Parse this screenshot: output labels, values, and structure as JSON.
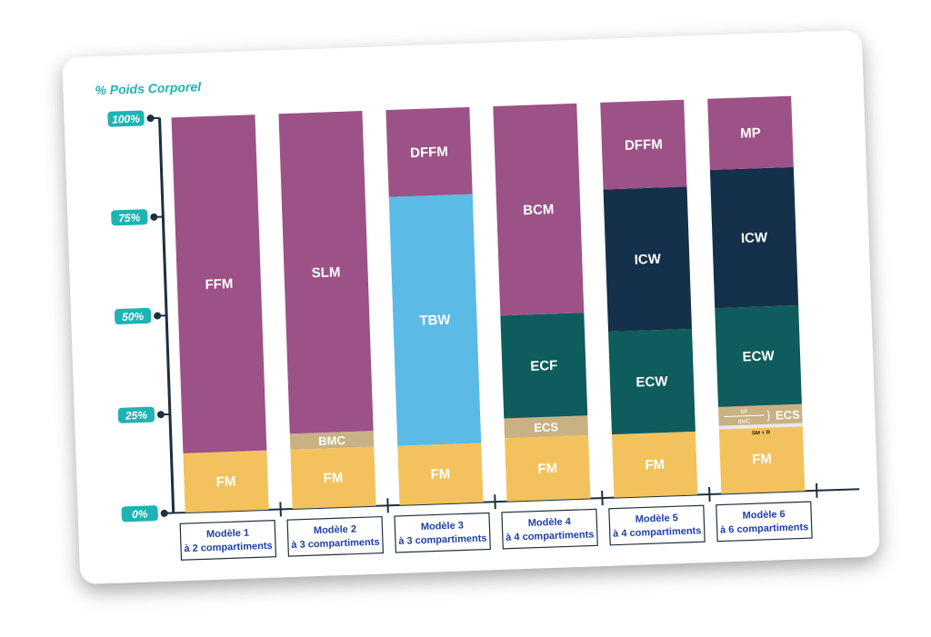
{
  "chart_data": {
    "type": "bar",
    "stacked": true,
    "ylabel": "% Poids Corporel",
    "yticks": [
      "0%",
      "25%",
      "50%",
      "75%",
      "100%"
    ],
    "ylim": [
      0,
      100
    ],
    "colors": {
      "purple": "#9c5287",
      "yellow": "#f4c25c",
      "blue": "#5bbbe6",
      "teal": "#0e5c5b",
      "navy": "#15304a",
      "tan": "#c8b283",
      "axis": "#1fb3b3",
      "label": "#1e3fa8"
    },
    "models": [
      {
        "line1": "Modèle 1",
        "line2": "à 2 compartiments",
        "segments": [
          {
            "name": "FM",
            "value": 15,
            "color": "yellow"
          },
          {
            "name": "FFM",
            "value": 85,
            "color": "purple"
          }
        ]
      },
      {
        "line1": "Modèle 2",
        "line2": "à 3 compartiments",
        "segments": [
          {
            "name": "FM",
            "value": 15,
            "color": "yellow"
          },
          {
            "name": "BMC",
            "value": 4,
            "color": "tan"
          },
          {
            "name": "SLM",
            "value": 81,
            "color": "purple"
          }
        ]
      },
      {
        "line1": "Modèle 3",
        "line2": "à 3 compartiments",
        "segments": [
          {
            "name": "FM",
            "value": 15,
            "color": "yellow"
          },
          {
            "name": "TBW",
            "value": 63,
            "color": "blue"
          },
          {
            "name": "DFFM",
            "value": 22,
            "color": "purple"
          }
        ]
      },
      {
        "line1": "Modèle 4",
        "line2": "à 4 compartiments",
        "segments": [
          {
            "name": "FM",
            "value": 16,
            "color": "yellow"
          },
          {
            "name": "ECS",
            "value": 5,
            "color": "tan"
          },
          {
            "name": "ECF",
            "value": 26,
            "color": "teal"
          },
          {
            "name": "BCM",
            "value": 53,
            "color": "purple"
          }
        ]
      },
      {
        "line1": "Modèle 5",
        "line2": "à 4 compartiments",
        "segments": [
          {
            "name": "FM",
            "value": 16,
            "color": "yellow"
          },
          {
            "name": "ECW",
            "value": 26,
            "color": "teal"
          },
          {
            "name": "ICW",
            "value": 36,
            "color": "navy"
          },
          {
            "name": "DFFM",
            "value": 22,
            "color": "purple"
          }
        ]
      },
      {
        "line1": "Modèle 6",
        "line2": "à 6 compartiments",
        "segments": [
          {
            "name": "FM",
            "value": 17,
            "color": "yellow"
          },
          {
            "name": "ECS",
            "value": 5,
            "color": "tan",
            "sub": [
              "SP",
              "BMC",
              "SM + R"
            ]
          },
          {
            "name": "ECW",
            "value": 25,
            "color": "teal"
          },
          {
            "name": "ICW",
            "value": 35,
            "color": "navy"
          },
          {
            "name": "MP",
            "value": 18,
            "color": "purple"
          }
        ]
      }
    ]
  }
}
